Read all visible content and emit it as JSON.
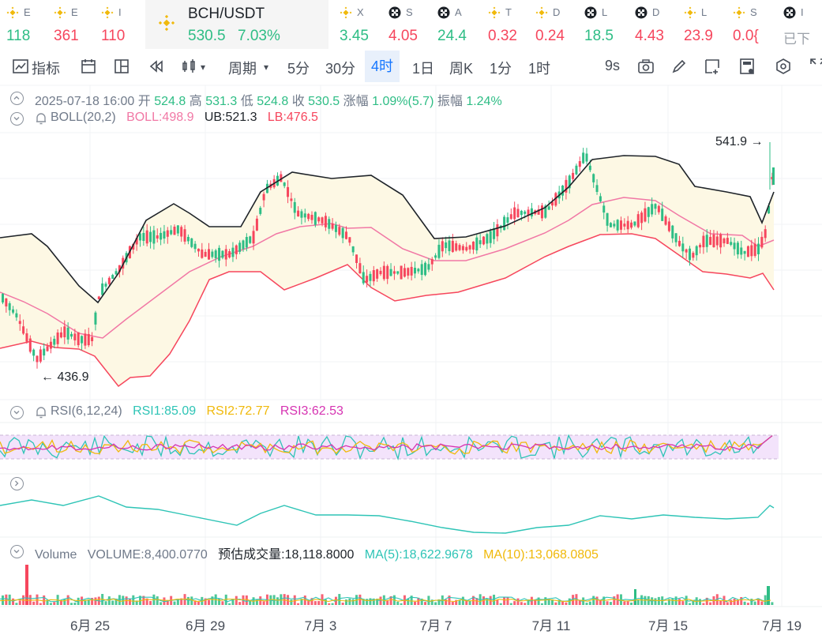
{
  "ticker": [
    {
      "name": "E",
      "price": "118",
      "dir": "up",
      "icon": "bnb-icon"
    },
    {
      "name": "E",
      "price": "361",
      "dir": "dn",
      "icon": "bnb-icon"
    },
    {
      "name": "I",
      "price": "110",
      "dir": "dn",
      "icon": "bnb-icon"
    },
    {
      "name": "X",
      "price": "3.45",
      "dir": "up",
      "icon": "bnb-icon"
    },
    {
      "name": "S",
      "price": "4.05",
      "dir": "dn",
      "icon": "checker-icon"
    },
    {
      "name": "A",
      "price": "24.4",
      "dir": "up",
      "icon": "checker-icon"
    },
    {
      "name": "T",
      "price": "0.32",
      "dir": "dn",
      "icon": "bnb-icon"
    },
    {
      "name": "D",
      "price": "0.24",
      "dir": "dn",
      "icon": "bnb-icon"
    },
    {
      "name": "L",
      "price": "18.5",
      "dir": "up",
      "icon": "checker-icon"
    },
    {
      "name": "D",
      "price": "4.43",
      "dir": "dn",
      "icon": "checker-icon"
    },
    {
      "name": "L",
      "price": "23.9",
      "dir": "dn",
      "icon": "bnb-icon"
    },
    {
      "name": "S",
      "price": "0.0{",
      "dir": "dn",
      "icon": "bnb-icon"
    },
    {
      "name": "I",
      "price": "已下",
      "dir": "gray",
      "icon": "checker-icon"
    }
  ],
  "active": {
    "symbol": "BCH/USDT",
    "price": "530.5",
    "change": "7.03%"
  },
  "toolbar": {
    "indicators": "指标",
    "period": "周期",
    "intervals": [
      "5分",
      "30分",
      "4时",
      "1日",
      "周K",
      "1分",
      "1时"
    ],
    "selected": "4时",
    "fps": "9s"
  },
  "ohlc": "2025-07-18 16:00  开 524.8  高 531.3  低 524.8  收 530.5  涨幅 1.09%(5.7)  振幅 1.24%",
  "ohlc_parts": {
    "date": "2025-07-18 16:00",
    "open_label": "开",
    "open": "524.8",
    "high_label": "高",
    "high": "531.3",
    "low_label": "低",
    "low": "524.8",
    "close_label": "收",
    "close": "530.5",
    "chg_label": "涨幅",
    "chg": "1.09%(5.7)",
    "amp_label": "振幅",
    "amp": "1.24%"
  },
  "boll": {
    "name": "BOLL(20,2)",
    "mid": "BOLL:498.9",
    "ub": "UB:521.3",
    "lb": "LB:476.5"
  },
  "rsi": {
    "name": "RSI(6,12,24)",
    "r1": "RSI1:85.09",
    "r2": "RSI2:72.77",
    "r3": "RSI3:62.53"
  },
  "volume": {
    "name": "Volume",
    "vol": "VOLUME:8,400.0770",
    "est": "预估成交量:18,118.8000",
    "ma5": "MA(5):18,622.9678",
    "ma10": "MA(10):13,068.0805"
  },
  "markers": {
    "high": "541.9",
    "low": "436.9"
  },
  "xlabels": [
    "6月 25",
    "6月 29",
    "7月 3",
    "7月 7",
    "7月 11",
    "7月 15",
    "7月 19"
  ],
  "colors": {
    "up": "#2ebd85",
    "down": "#f6465d",
    "ub": "#1e2329",
    "mid": "#f178a5",
    "lb": "#f6465d",
    "rsi1": "#2ec4b6",
    "rsi2": "#f0b90b",
    "rsi3": "#d633b2",
    "accent": "#1677ff"
  }
}
